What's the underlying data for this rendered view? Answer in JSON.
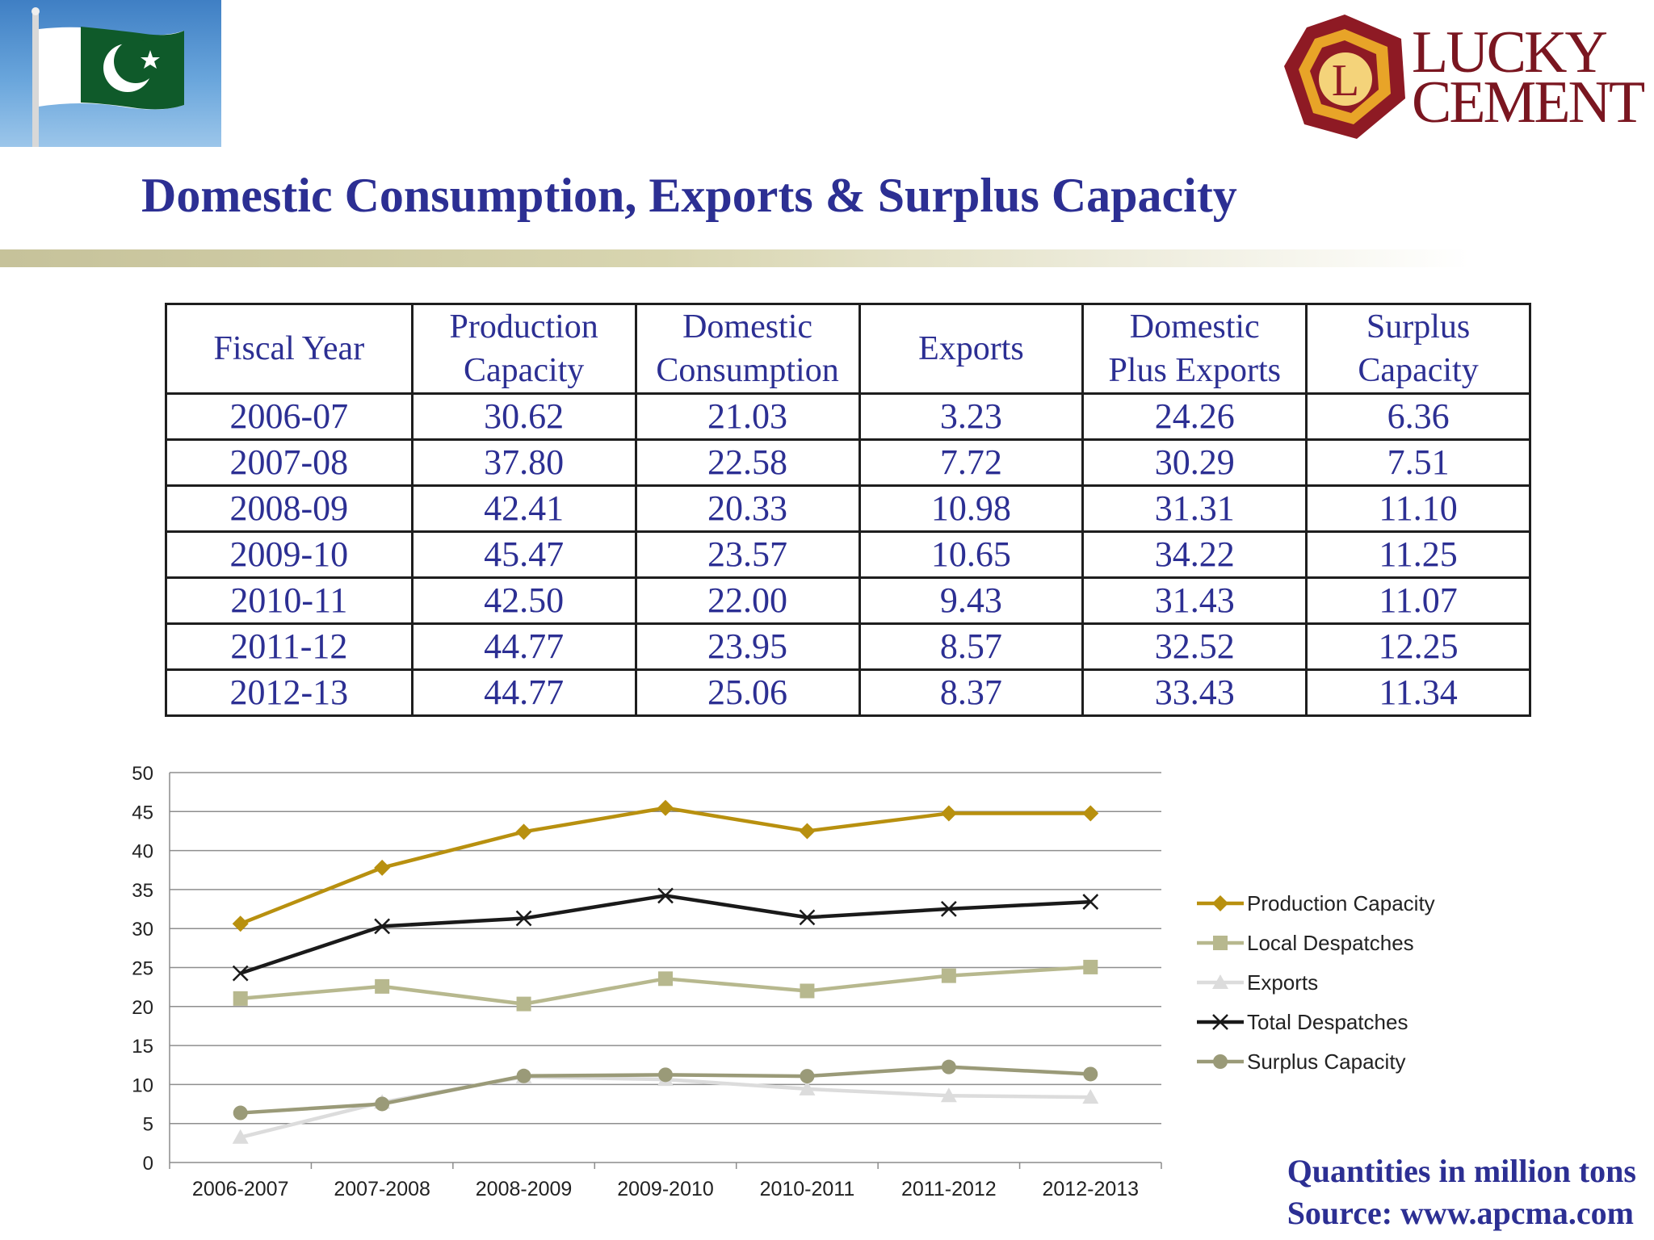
{
  "header": {
    "flag_image": "pakistan-flag-icon",
    "logo": {
      "text_line1": "LUCKY",
      "text_line2": "CEMENT",
      "emblem_letter": "L"
    },
    "title": "Domestic Consumption, Exports & Surplus Capacity"
  },
  "table": {
    "columns": [
      "Fiscal Year",
      "Production\nCapacity",
      "Domestic\nConsumption",
      "Exports",
      "Domestic\nPlus Exports",
      "Surplus\nCapacity"
    ],
    "rows": [
      [
        "2006-07",
        "30.62",
        "21.03",
        "3.23",
        "24.26",
        "6.36"
      ],
      [
        "2007-08",
        "37.80",
        "22.58",
        "7.72",
        "30.29",
        "7.51"
      ],
      [
        "2008-09",
        "42.41",
        "20.33",
        "10.98",
        "31.31",
        "11.10"
      ],
      [
        "2009-10",
        "45.47",
        "23.57",
        "10.65",
        "34.22",
        "11.25"
      ],
      [
        "2010-11",
        "42.50",
        "22.00",
        "9.43",
        "31.43",
        "11.07"
      ],
      [
        "2011-12",
        "44.77",
        "23.95",
        "8.57",
        "32.52",
        "12.25"
      ],
      [
        "2012-13",
        "44.77",
        "25.06",
        "8.37",
        "33.43",
        "11.34"
      ]
    ]
  },
  "chart_data": {
    "type": "line",
    "categories": [
      "2006-2007",
      "2007-2008",
      "2008-2009",
      "2009-2010",
      "2010-2011",
      "2011-2012",
      "2012-2013"
    ],
    "ylim": [
      0,
      50
    ],
    "yticks": [
      0,
      5,
      10,
      15,
      20,
      25,
      30,
      35,
      40,
      45,
      50
    ],
    "grid": true,
    "legend_position": "right",
    "series": [
      {
        "name": "Production Capacity",
        "color": "#b8900f",
        "marker": "diamond",
        "values": [
          30.62,
          37.8,
          42.41,
          45.47,
          42.5,
          44.77,
          44.77
        ]
      },
      {
        "name": "Local Despatches",
        "color": "#b7b88e",
        "marker": "square",
        "values": [
          21.03,
          22.58,
          20.33,
          23.57,
          22.0,
          23.95,
          25.06
        ]
      },
      {
        "name": "Exports",
        "color": "#dcdcdc",
        "marker": "triangle",
        "values": [
          3.23,
          7.72,
          10.98,
          10.65,
          9.43,
          8.57,
          8.37
        ]
      },
      {
        "name": "Total Despatches",
        "color": "#1a1a1a",
        "marker": "x",
        "values": [
          24.26,
          30.29,
          31.31,
          34.22,
          31.43,
          32.52,
          33.43
        ]
      },
      {
        "name": "Surplus Capacity",
        "color": "#9a9a78",
        "marker": "circle",
        "values": [
          6.36,
          7.51,
          11.1,
          11.25,
          11.07,
          12.25,
          11.34
        ]
      }
    ]
  },
  "footer": {
    "note_line1": "Quantities in million tons",
    "note_line2": "Source: www.apcma.com"
  }
}
